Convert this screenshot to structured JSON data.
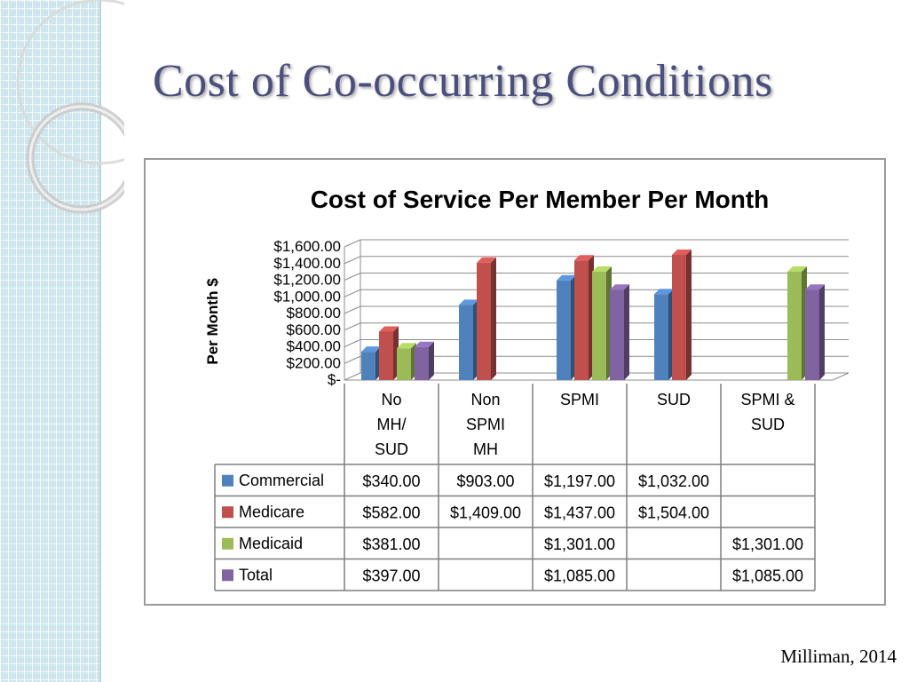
{
  "slide": {
    "title": "Cost of Co-occurring Conditions",
    "source": "Milliman, 2014"
  },
  "chart_data": {
    "type": "bar",
    "subtype": "3d-clustered-column-with-data-table",
    "title": "Cost of Service Per Member Per Month",
    "xlabel": "",
    "ylabel": "Per Month $",
    "ylim": [
      0,
      1600
    ],
    "y_ticks": [
      0,
      200,
      400,
      600,
      800,
      1000,
      1200,
      1400,
      1600
    ],
    "y_tick_labels": [
      "$-",
      "$200.00",
      "$400.00",
      "$600.00",
      "$800.00",
      "$1,000.00",
      "$1,200.00",
      "$1,400.00",
      "$1,600.00"
    ],
    "grid": true,
    "categories": [
      "No MH/ SUD",
      "Non SPMI MH",
      "SPMI",
      "SUD",
      "SPMI & SUD"
    ],
    "category_lines": [
      [
        "No",
        "MH/",
        "SUD"
      ],
      [
        "Non",
        "SPMI",
        "MH"
      ],
      [
        "SPMI"
      ],
      [
        "SUD"
      ],
      [
        "SPMI &",
        "SUD"
      ]
    ],
    "series": [
      {
        "name": "Commercial",
        "color": "#4f81bd",
        "values": [
          340,
          903,
          1197,
          1032,
          null
        ],
        "labels": [
          "$340.00",
          "$903.00",
          "$1,197.00",
          "$1,032.00",
          ""
        ]
      },
      {
        "name": "Medicare",
        "color": "#c0504d",
        "values": [
          582,
          1409,
          1437,
          1504,
          null
        ],
        "labels": [
          "$582.00",
          "$1,409.00",
          "$1,437.00",
          "$1,504.00",
          ""
        ]
      },
      {
        "name": "Medicaid",
        "color": "#9bbb59",
        "values": [
          381,
          null,
          1301,
          null,
          1301
        ],
        "labels": [
          "$381.00",
          "",
          "$1,301.00",
          "",
          "$1,301.00"
        ]
      },
      {
        "name": "Total",
        "color": "#8064a2",
        "values": [
          397,
          null,
          1085,
          null,
          1085
        ],
        "labels": [
          "$397.00",
          "",
          "$1,085.00",
          "",
          "$1,085.00"
        ]
      }
    ]
  }
}
